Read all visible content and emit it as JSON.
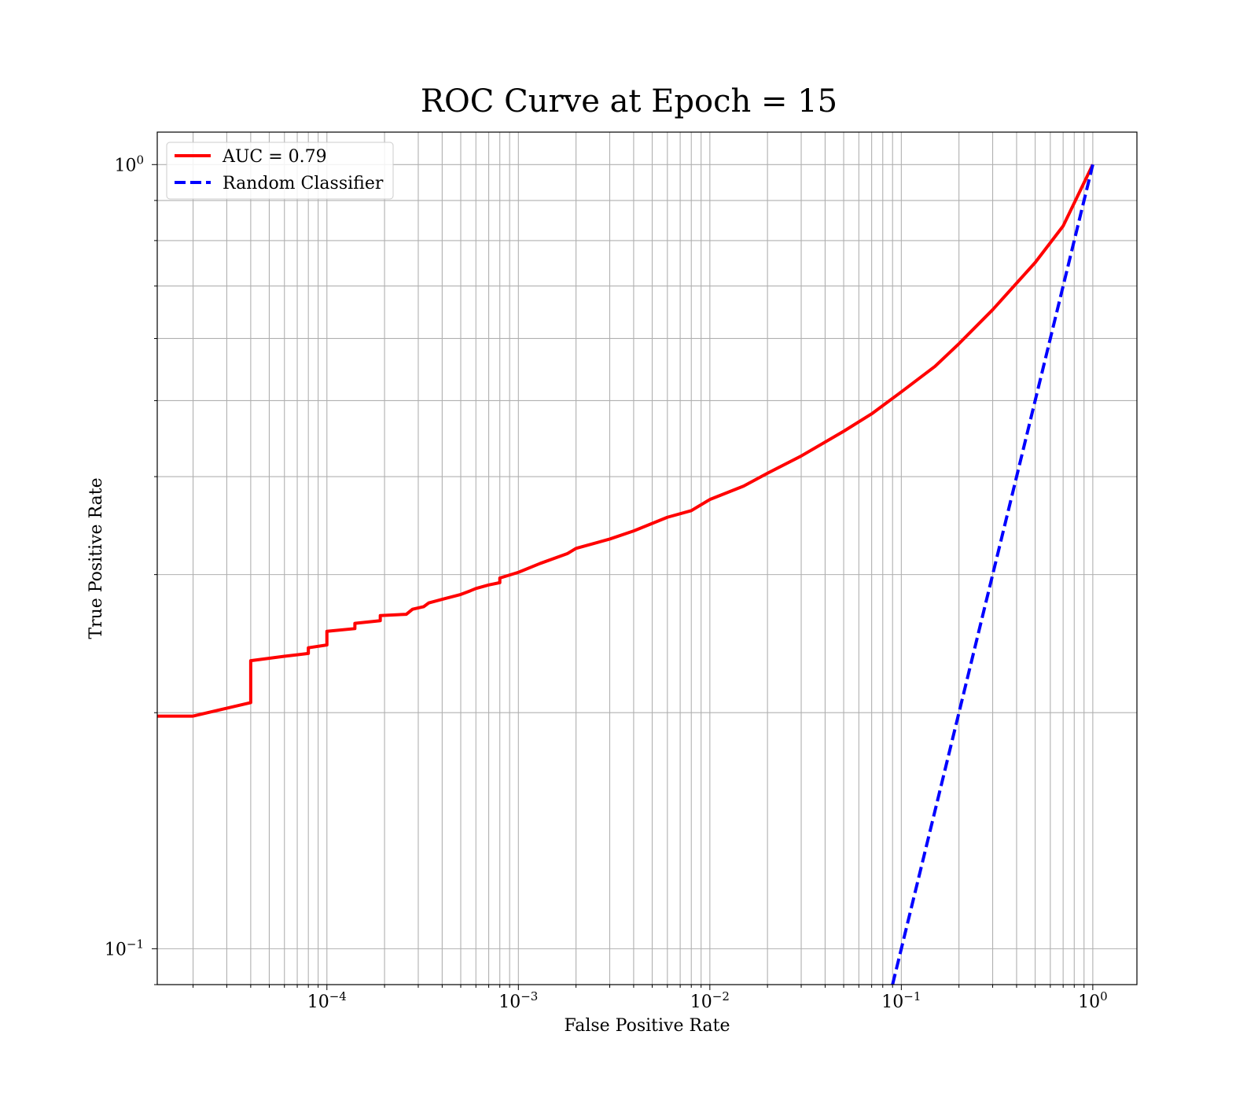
{
  "chart_data": {
    "type": "line",
    "title": "ROC Curve at Epoch = 15",
    "xlabel": "False Positive Rate",
    "ylabel": "True Positive Rate",
    "xscale": "log",
    "yscale": "log",
    "xlim": [
      1.3e-05,
      1.7
    ],
    "ylim": [
      0.09,
      1.1
    ],
    "grid": true,
    "legend_position": "upper-left",
    "x_ticks": [
      {
        "value": 0.0001,
        "base": "10",
        "exp": "−4"
      },
      {
        "value": 0.001,
        "base": "10",
        "exp": "−3"
      },
      {
        "value": 0.01,
        "base": "10",
        "exp": "−2"
      },
      {
        "value": 0.1,
        "base": "10",
        "exp": "−1"
      },
      {
        "value": 1,
        "base": "10",
        "exp": "0"
      }
    ],
    "y_ticks": [
      {
        "value": 0.1,
        "base": "10",
        "exp": "−1"
      },
      {
        "value": 1,
        "base": "10",
        "exp": "0"
      }
    ],
    "series": [
      {
        "name": "AUC = 0.79",
        "color": "#ff0000",
        "style": "solid",
        "x": [
          1.3e-05,
          2e-05,
          4e-05,
          4e-05,
          6e-05,
          8e-05,
          8e-05,
          0.0001,
          0.0001,
          0.00014,
          0.00014,
          0.00019,
          0.00019,
          0.00026,
          0.00028,
          0.00032,
          0.00034,
          0.0004,
          0.0005,
          0.00056,
          0.0006,
          0.0007,
          0.0008,
          0.0008,
          0.001,
          0.0013,
          0.0018,
          0.002,
          0.003,
          0.004,
          0.006,
          0.008,
          0.01,
          0.015,
          0.02,
          0.03,
          0.05,
          0.07,
          0.1,
          0.15,
          0.2,
          0.3,
          0.5,
          0.7,
          1.0
        ],
        "y": [
          0.198,
          0.198,
          0.206,
          0.233,
          0.236,
          0.238,
          0.242,
          0.244,
          0.254,
          0.256,
          0.26,
          0.262,
          0.266,
          0.267,
          0.271,
          0.273,
          0.276,
          0.279,
          0.283,
          0.286,
          0.288,
          0.291,
          0.293,
          0.297,
          0.302,
          0.31,
          0.319,
          0.324,
          0.333,
          0.341,
          0.355,
          0.362,
          0.374,
          0.389,
          0.404,
          0.425,
          0.457,
          0.481,
          0.513,
          0.553,
          0.591,
          0.653,
          0.75,
          0.835,
          1.0
        ]
      },
      {
        "name": "Random Classifier",
        "color": "#0000ff",
        "style": "dashed",
        "x": [
          0.09,
          0.1,
          1.0
        ],
        "y": [
          0.09,
          0.1,
          1.0
        ]
      }
    ]
  }
}
